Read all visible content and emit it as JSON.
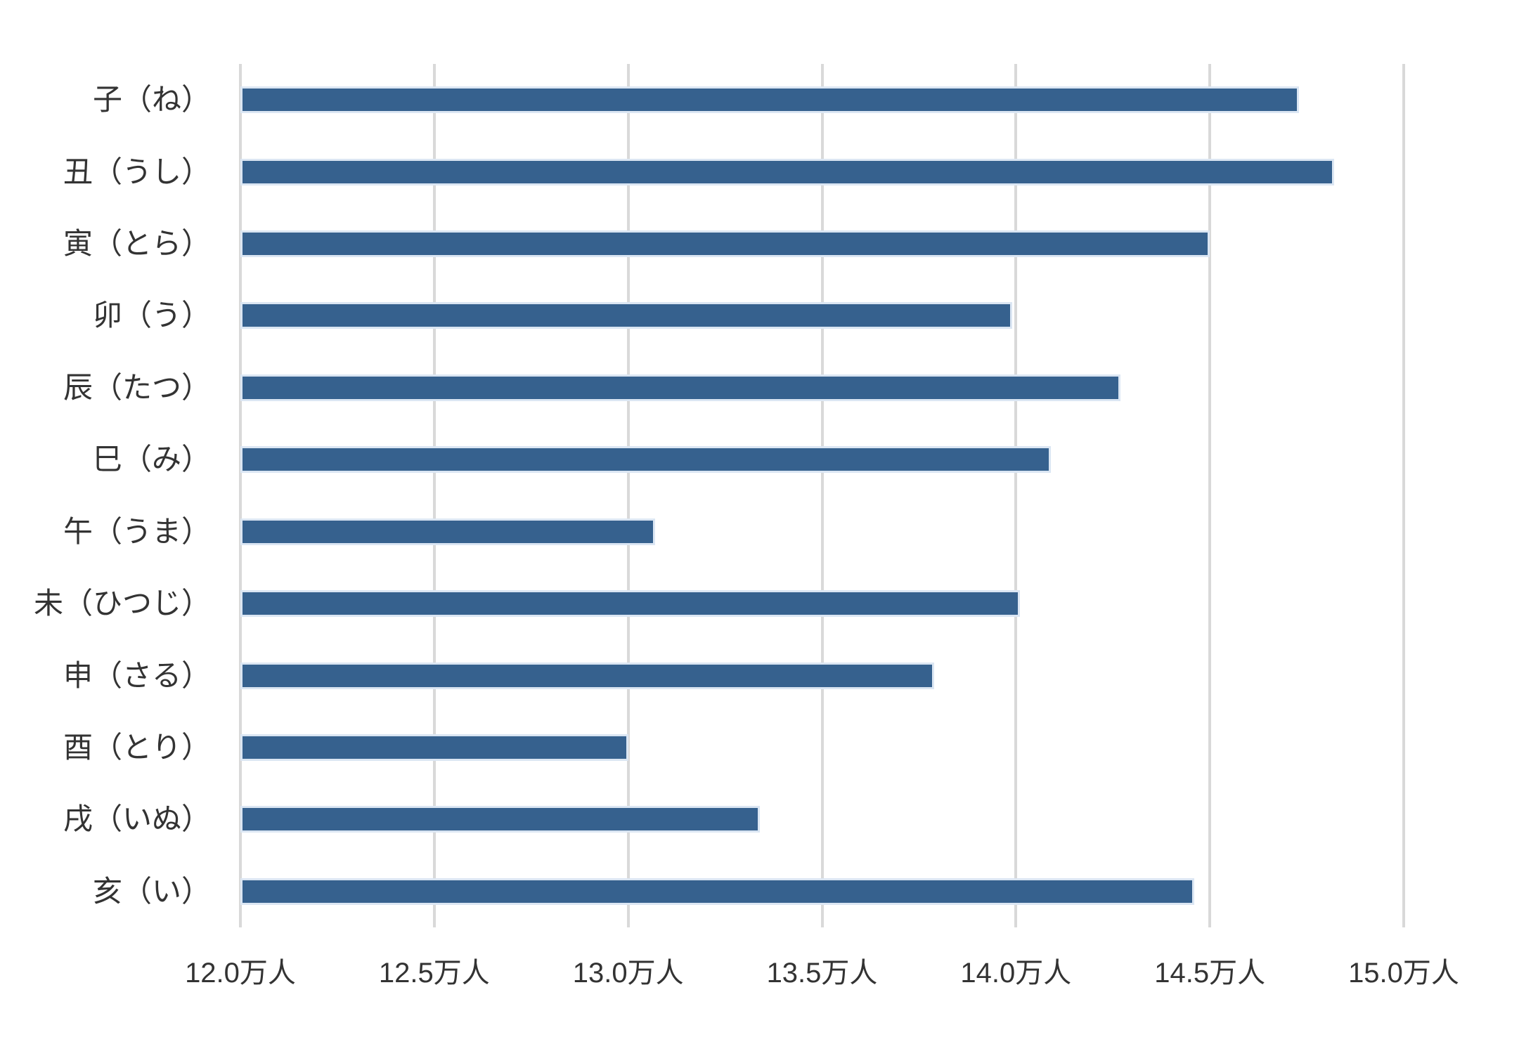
{
  "chart_data": {
    "type": "bar",
    "orientation": "horizontal",
    "title": "",
    "xlabel": "",
    "ylabel": "",
    "unit": "万人",
    "categories": [
      "子（ね）",
      "丑（うし）",
      "寅（とら）",
      "卯（う）",
      "辰（たつ）",
      "巳（み）",
      "午（うま）",
      "未（ひつじ）",
      "申（さる）",
      "酉（とり）",
      "戌（いぬ）",
      "亥（い）"
    ],
    "values": [
      14.73,
      14.82,
      14.5,
      13.99,
      14.27,
      14.09,
      13.07,
      14.01,
      13.79,
      13.0,
      13.34,
      14.46
    ],
    "xlim": [
      12.0,
      15.0
    ],
    "xticks": [
      12.0,
      12.5,
      13.0,
      13.5,
      14.0,
      14.5,
      15.0
    ],
    "xtick_labels": [
      "12.0万人",
      "12.5万人",
      "13.0万人",
      "13.5万人",
      "14.0万人",
      "14.5万人",
      "15.0万人"
    ],
    "grid": true,
    "legend": false,
    "colors": {
      "bar_fill": "#36618e",
      "bar_border": "#dbe6f3",
      "gridline": "#d9d9d9",
      "text": "#333333",
      "background": "#ffffff"
    }
  }
}
